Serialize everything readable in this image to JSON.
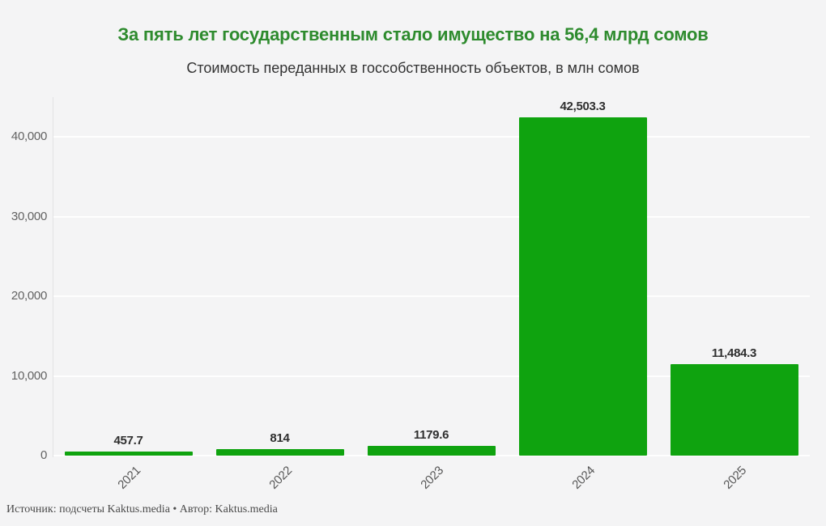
{
  "page": {
    "background": "#f4f4f5"
  },
  "header": {
    "title": "За пять лет государственным стало имущество на 56,4 млрд сомов",
    "subtitle": "Стоимость переданных в госсобственность объектов, в млн сомов",
    "title_color": "#2e8b2e"
  },
  "footer": {
    "source": "Источник: подсчеты Kaktus.media • Автор: Kaktus.media"
  },
  "chart_data": {
    "type": "bar",
    "title": "За пять лет государственным стало имущество на 56,4 млрд сомов",
    "subtitle": "Стоимость переданных в госсобственность объектов, в млн сомов",
    "categories": [
      "2021",
      "2022",
      "2023",
      "2024",
      "2025"
    ],
    "values": [
      457.7,
      814,
      1179.6,
      42503.3,
      11484.3
    ],
    "value_labels": [
      "457.7",
      "814",
      "1179.6",
      "42,503.3",
      "11,484.3"
    ],
    "xlabel": "",
    "ylabel": "",
    "ylim": [
      0,
      45000
    ],
    "yticks": [
      0,
      10000,
      20000,
      30000,
      40000
    ],
    "ytick_labels": [
      "0",
      "10,000",
      "20,000",
      "30,000",
      "40,000"
    ],
    "bar_color": "#0fa30f",
    "grid": true,
    "gridline_color": "rgba(255,255,255,0.85)",
    "legend": false,
    "xtick_rotation_deg": -45
  }
}
